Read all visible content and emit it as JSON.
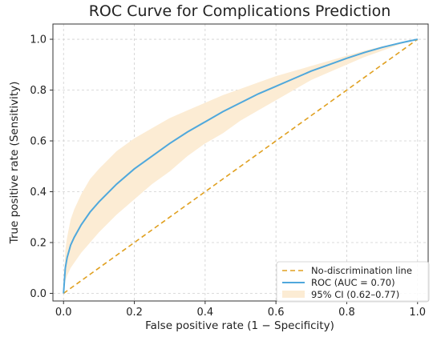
{
  "chart_data": {
    "type": "line",
    "title": "ROC Curve for Complications Prediction",
    "xlabel": "False positive rate (1 − Specificity)",
    "ylabel": "True positive rate (Sensitivity)",
    "xlim": [
      -0.03,
      1.03
    ],
    "ylim": [
      -0.03,
      1.06
    ],
    "xticks": [
      "0.0",
      "0.2",
      "0.4",
      "0.6",
      "0.8",
      "1.0"
    ],
    "yticks": [
      "0.0",
      "0.2",
      "0.4",
      "0.6",
      "0.8",
      "1.0"
    ],
    "grid": true,
    "legend_position": "bottom-right",
    "series": [
      {
        "name": "No-discrimination line",
        "style": "dashed",
        "color": "#e0a020",
        "x": [
          0,
          1
        ],
        "y": [
          0,
          1
        ]
      },
      {
        "name": "ROC (AUC = 0.70)",
        "style": "solid",
        "color": "#4fa8dc",
        "x": [
          0,
          0.005,
          0.01,
          0.02,
          0.03,
          0.05,
          0.075,
          0.1,
          0.15,
          0.2,
          0.25,
          0.3,
          0.35,
          0.4,
          0.45,
          0.5,
          0.55,
          0.6,
          0.65,
          0.7,
          0.75,
          0.8,
          0.85,
          0.9,
          0.95,
          1.0
        ],
        "y": [
          0,
          0.1,
          0.14,
          0.19,
          0.22,
          0.27,
          0.32,
          0.36,
          0.43,
          0.49,
          0.54,
          0.59,
          0.635,
          0.675,
          0.715,
          0.75,
          0.785,
          0.815,
          0.845,
          0.875,
          0.9,
          0.925,
          0.948,
          0.968,
          0.985,
          1.0
        ]
      }
    ],
    "ci_band": {
      "name": "95% CI (0.62–0.77)",
      "color": "#fcecd4",
      "x": [
        0,
        0.005,
        0.01,
        0.02,
        0.03,
        0.05,
        0.075,
        0.1,
        0.15,
        0.2,
        0.25,
        0.3,
        0.35,
        0.4,
        0.45,
        0.5,
        0.55,
        0.6,
        0.65,
        0.7,
        0.75,
        0.8,
        0.85,
        0.9,
        0.95,
        1.0
      ],
      "upper": [
        0,
        0.17,
        0.22,
        0.29,
        0.33,
        0.39,
        0.45,
        0.49,
        0.56,
        0.61,
        0.65,
        0.69,
        0.72,
        0.75,
        0.78,
        0.805,
        0.83,
        0.855,
        0.875,
        0.895,
        0.915,
        0.935,
        0.955,
        0.972,
        0.987,
        1.0
      ],
      "lower": [
        0,
        0.05,
        0.07,
        0.1,
        0.12,
        0.16,
        0.2,
        0.24,
        0.31,
        0.37,
        0.43,
        0.48,
        0.54,
        0.59,
        0.63,
        0.68,
        0.72,
        0.76,
        0.8,
        0.84,
        0.87,
        0.9,
        0.93,
        0.955,
        0.98,
        1.0
      ]
    }
  }
}
